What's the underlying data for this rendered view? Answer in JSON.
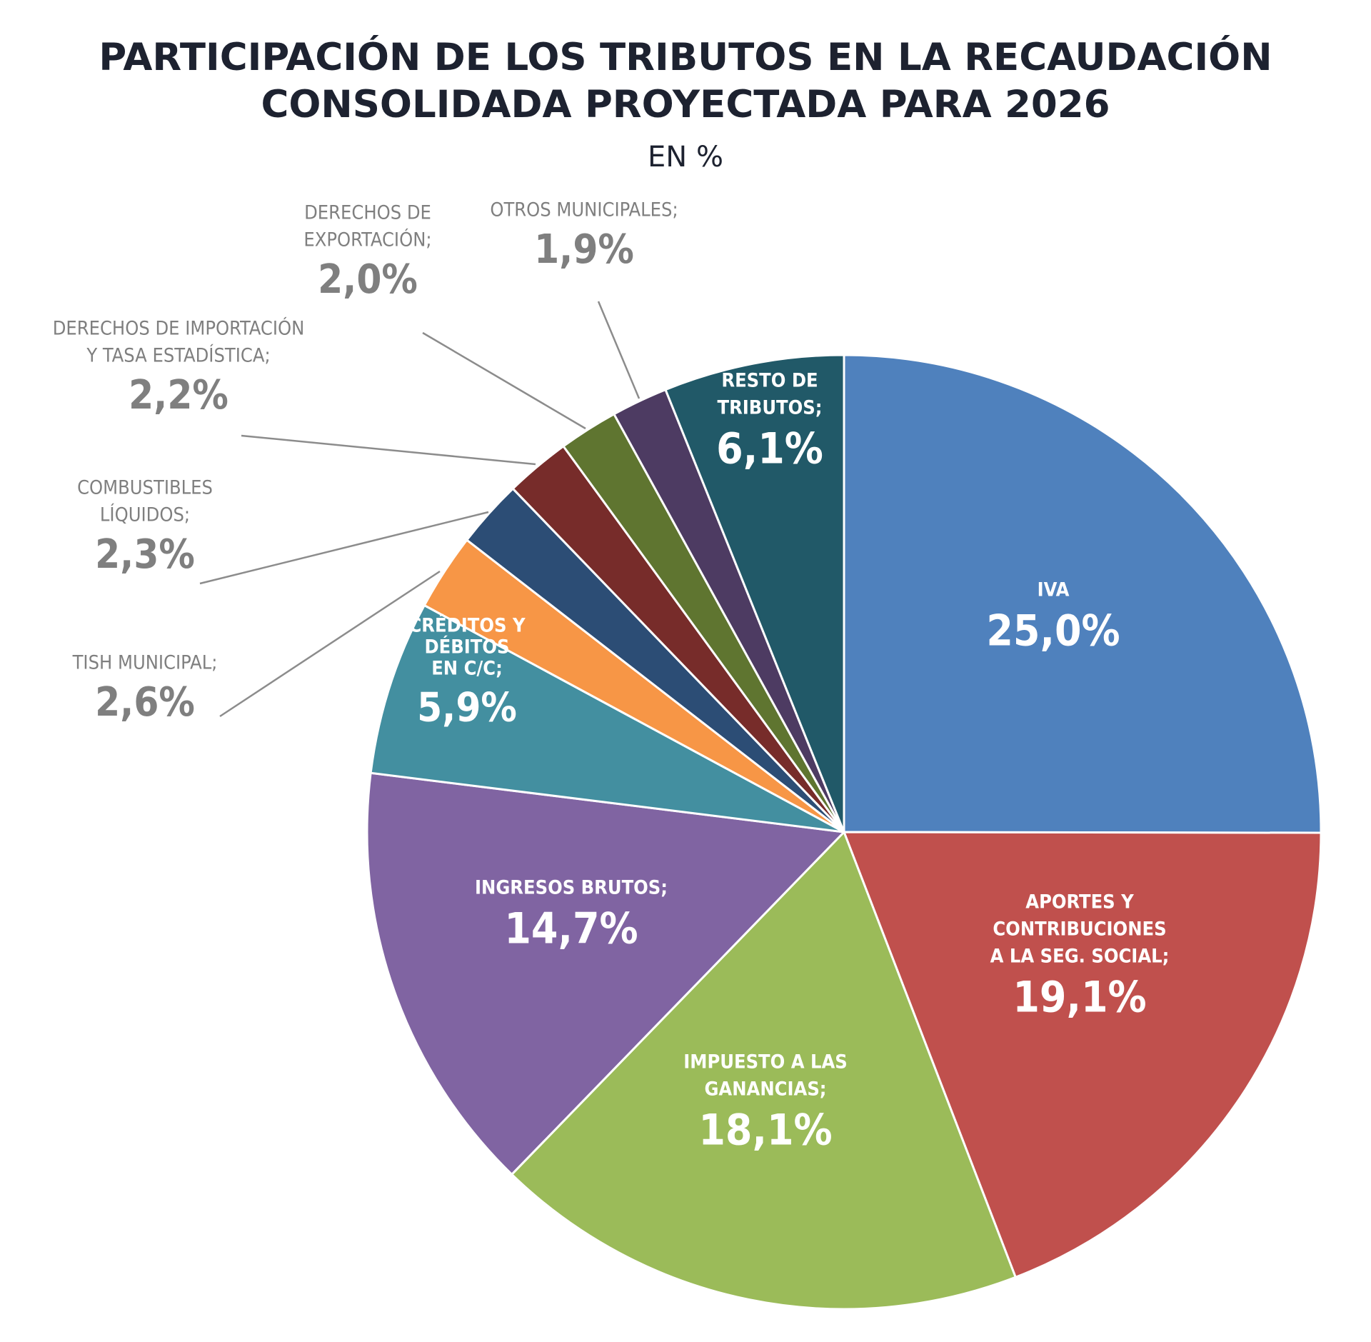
{
  "chart_data": {
    "type": "pie",
    "title_lines": [
      "PARTICIPACIÓN DE LOS TRIBUTOS EN LA RECAUDACIÓN",
      "CONSOLIDADA PROYECTADA PARA 2026"
    ],
    "subtitle": "EN %",
    "slices": [
      {
        "label_lines": [
          "IVA"
        ],
        "value": 25.0,
        "value_text": "25,0%",
        "color": "#4f81bd",
        "label_style": "inside"
      },
      {
        "label_lines": [
          "APORTES Y",
          "CONTRIBUCIONES",
          "A LA SEG. SOCIAL;"
        ],
        "value": 19.1,
        "value_text": "19,1%",
        "color": "#c0504d",
        "label_style": "inside"
      },
      {
        "label_lines": [
          "IMPUESTO A LAS",
          "GANANCIAS;"
        ],
        "value": 18.1,
        "value_text": "18,1%",
        "color": "#9bbb59",
        "label_style": "inside"
      },
      {
        "label_lines": [
          "INGRESOS BRUTOS;"
        ],
        "value": 14.7,
        "value_text": "14,7%",
        "color": "#8064a2",
        "label_style": "inside"
      },
      {
        "label_lines": [
          "CRÉDITOS Y",
          "DÉBITOS",
          "EN C/C;"
        ],
        "value": 5.9,
        "value_text": "5,9%",
        "color": "#438fa0",
        "label_style": "inside"
      },
      {
        "label_lines": [
          "TISH MUNICIPAL;"
        ],
        "value": 2.6,
        "value_text": "2,6%",
        "color": "#f79646",
        "label_style": "outside"
      },
      {
        "label_lines": [
          "COMBUSTIBLES",
          "LÍQUIDOS;"
        ],
        "value": 2.3,
        "value_text": "2,3%",
        "color": "#2c4d75",
        "label_style": "outside"
      },
      {
        "label_lines": [
          "DERECHOS DE IMPORTACIÓN",
          "Y TASA ESTADÍSTICA;"
        ],
        "value": 2.2,
        "value_text": "2,2%",
        "color": "#772c2a",
        "label_style": "outside"
      },
      {
        "label_lines": [
          "DERECHOS DE",
          "EXPORTACIÓN;"
        ],
        "value": 2.0,
        "value_text": "2,0%",
        "color": "#5f7530",
        "label_style": "outside"
      },
      {
        "label_lines": [
          "OTROS MUNICIPALES;"
        ],
        "value": 1.9,
        "value_text": "1,9%",
        "color": "#4d3b62",
        "label_style": "outside"
      },
      {
        "label_lines": [
          "RESTO DE",
          "TRIBUTOS;"
        ],
        "value": 6.1,
        "value_text": "6,1%",
        "color": "#215968",
        "label_style": "inside"
      }
    ],
    "start_angle": "12 o'clock",
    "direction": "clockwise",
    "legend": "none",
    "inside_label_color": "#ffffff",
    "outside_label_color": "#7f7f7f",
    "leader_line_color": "#8c8c8c",
    "slice_border_color": "#ffffff"
  }
}
